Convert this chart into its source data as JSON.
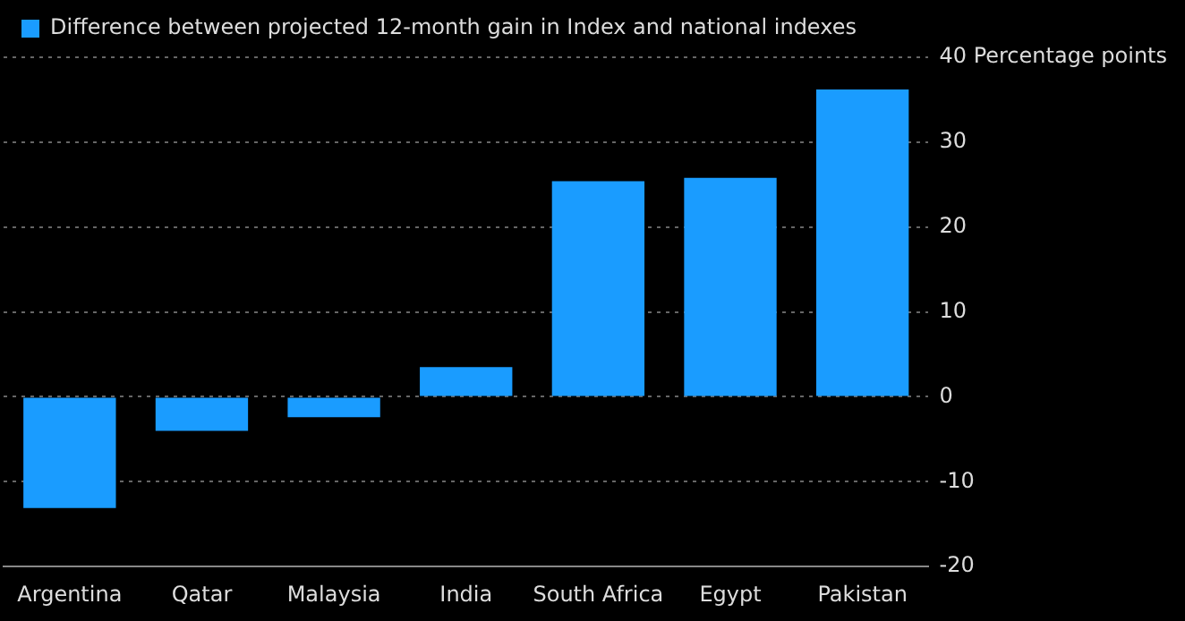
{
  "chart_data": {
    "type": "bar",
    "categories": [
      "Argentina",
      "Qatar",
      "Malaysia",
      "India",
      "South Africa",
      "Egypt",
      "Pakistan"
    ],
    "series": [
      {
        "name": "Difference between projected 12-month gain in Index and national indexes",
        "color": "#1a9cff",
        "values": [
          -13.1,
          -4.0,
          -2.4,
          3.5,
          25.4,
          25.8,
          36.2
        ]
      }
    ],
    "ylim": [
      -20,
      40
    ],
    "yticks": [
      -20,
      -10,
      0,
      10,
      20,
      30,
      {
        "value": 40,
        "label": "40 Percentage points"
      }
    ],
    "grid": "y",
    "legend": "top left"
  }
}
